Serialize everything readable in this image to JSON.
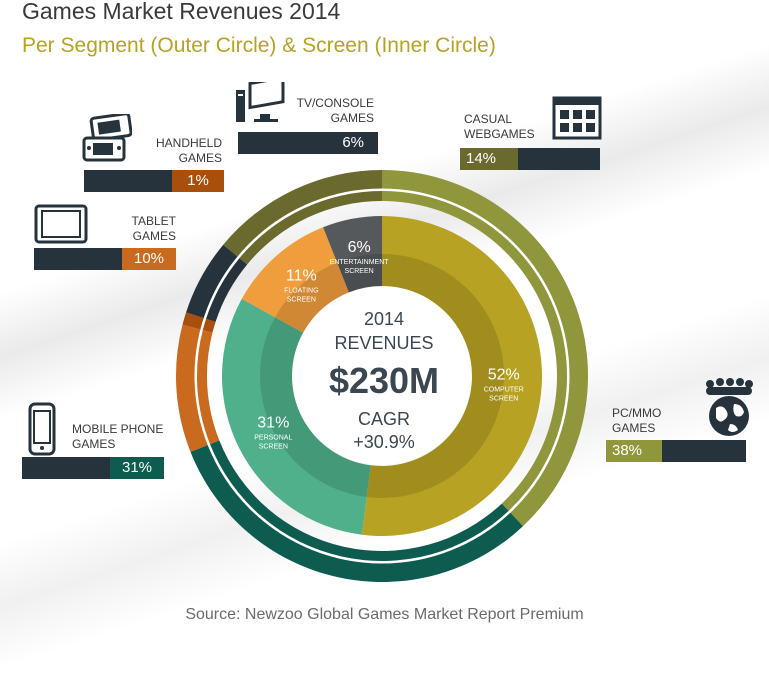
{
  "title": "Games Market Revenues 2014",
  "subtitle": "Per Segment (Outer Circle) & Screen (Inner Circle)",
  "center": {
    "year": "2014",
    "revenues": "REVENUES",
    "amount": "$230M",
    "cagr_label": "CAGR",
    "cagr": "+30.9%"
  },
  "source": "Source: Newzoo Global Games Market Report Premium",
  "colors": {
    "dark": "#26333d",
    "olive": "#6b6a2e",
    "light_olive": "#8f963c",
    "mustard": "#b8a223",
    "orange": "#c96a1f",
    "light_orange": "#ef9d3d",
    "teal": "#0d5c4f",
    "light_teal": "#4fb08b",
    "grey": "#56595b"
  },
  "chart_data": {
    "type": "pie",
    "title": "Games Market Revenues 2014",
    "outer": [
      {
        "name": "PC/MMO GAMES",
        "value": 38,
        "label": "38%",
        "color": "#8f963c"
      },
      {
        "name": "MOBILE PHONE GAMES",
        "value": 31,
        "label": "31%",
        "color": "#0d5c4f"
      },
      {
        "name": "TABLET GAMES",
        "value": 10,
        "label": "10%",
        "color": "#c96a1f"
      },
      {
        "name": "HANDHELD GAMES",
        "value": 1,
        "label": "1%",
        "color": "#a84f0e"
      },
      {
        "name": "TV/CONSOLE GAMES",
        "value": 6,
        "label": "6%",
        "color": "#26333d"
      },
      {
        "name": "CASUAL WEBGAMES",
        "value": 14,
        "label": "14%",
        "color": "#6b6a2e"
      }
    ],
    "inner": [
      {
        "name": "COMPUTER SCREEN",
        "value": 52,
        "label": "52%",
        "color": "#b8a223"
      },
      {
        "name": "PERSONAL SCREEN",
        "value": 31,
        "label": "31%",
        "color": "#4fb08b"
      },
      {
        "name": "FLOATING SCREEN",
        "value": 11,
        "label": "11%",
        "color": "#ef9d3d"
      },
      {
        "name": "ENTERTAINMENT SCREEN",
        "value": 6,
        "label": "6%",
        "color": "#56595b"
      }
    ]
  }
}
